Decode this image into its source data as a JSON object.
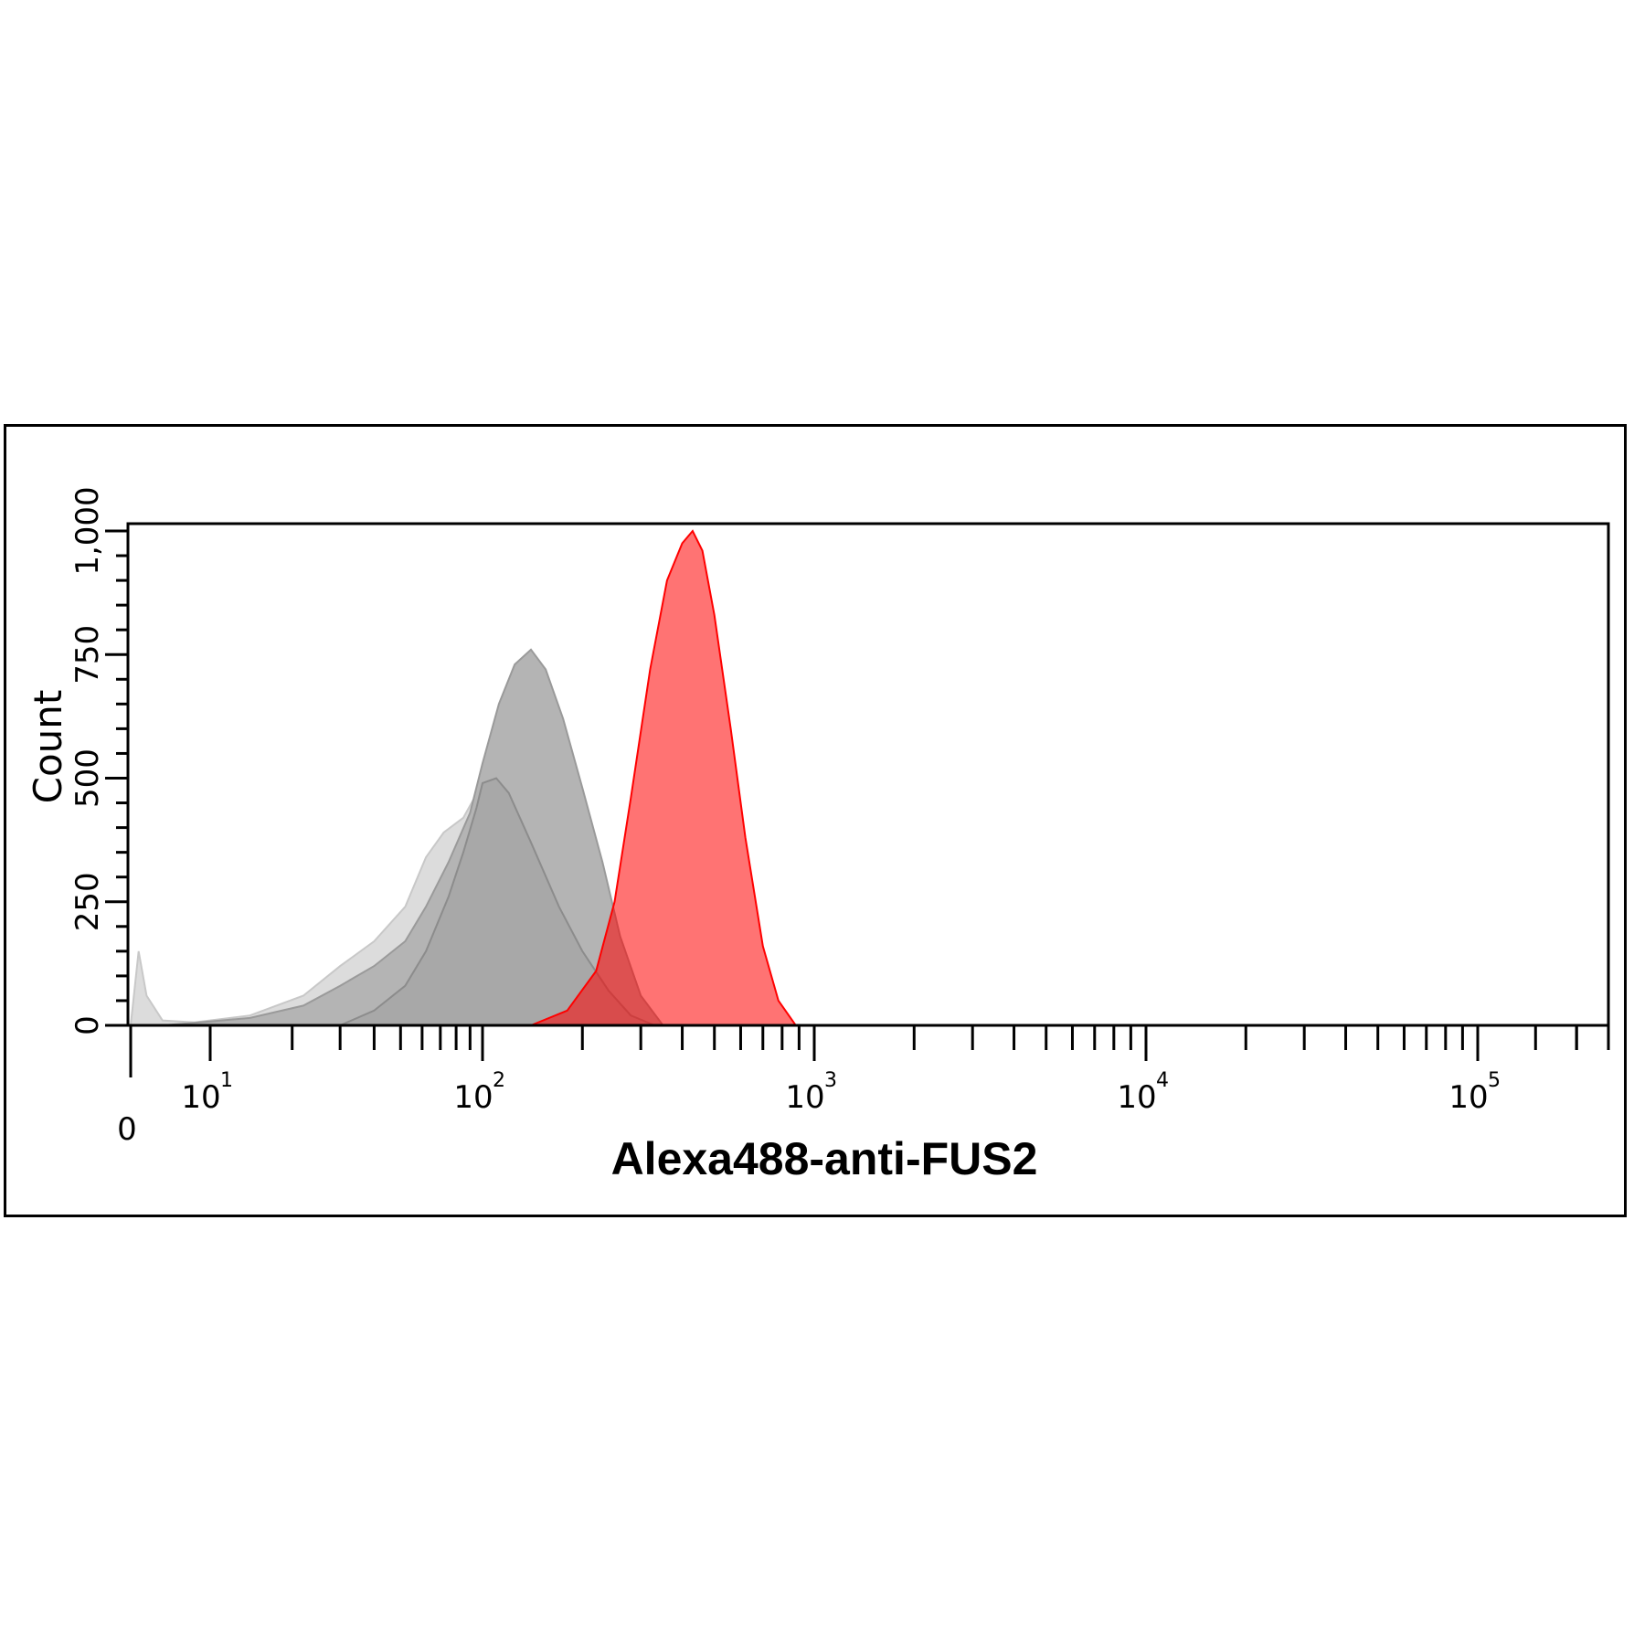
{
  "chart_data": {
    "type": "area",
    "title": "",
    "xlabel": "Alexa488-anti-FUS2",
    "ylabel": "Count",
    "x_scale": "biexponential",
    "xlim": [
      0,
      250000
    ],
    "ylim": [
      0,
      1000
    ],
    "x_ticks": [
      {
        "value": 0,
        "label": "0"
      },
      {
        "value": 10,
        "base": "10",
        "exp": "1"
      },
      {
        "value": 100,
        "base": "10",
        "exp": "2"
      },
      {
        "value": 1000,
        "base": "10",
        "exp": "3"
      },
      {
        "value": 10000,
        "base": "10",
        "exp": "4"
      },
      {
        "value": 100000,
        "base": "10",
        "exp": "5"
      }
    ],
    "y_ticks": [
      {
        "value": 0,
        "label": "0"
      },
      {
        "value": 250,
        "label": "250"
      },
      {
        "value": 500,
        "label": "500"
      },
      {
        "value": 750,
        "label": "750"
      },
      {
        "value": 1000,
        "label": "1,000"
      }
    ],
    "grid": false,
    "legend": "none",
    "series": [
      {
        "color": "#dcdcdc",
        "stroke": "#c8c8c8",
        "points": [
          [
            0,
            0
          ],
          [
            1,
            150
          ],
          [
            2,
            60
          ],
          [
            4,
            10
          ],
          [
            8,
            6
          ],
          [
            14,
            20
          ],
          [
            22,
            60
          ],
          [
            30,
            120
          ],
          [
            40,
            170
          ],
          [
            52,
            240
          ],
          [
            62,
            340
          ],
          [
            72,
            390
          ],
          [
            85,
            420
          ],
          [
            100,
            490
          ],
          [
            115,
            540
          ],
          [
            135,
            470
          ],
          [
            160,
            330
          ],
          [
            200,
            180
          ],
          [
            240,
            80
          ],
          [
            300,
            0
          ]
        ]
      },
      {
        "color": "#b4b4b4",
        "stroke": "#9a9a9a",
        "points": [
          [
            4,
            0
          ],
          [
            8,
            5
          ],
          [
            14,
            15
          ],
          [
            22,
            40
          ],
          [
            30,
            80
          ],
          [
            40,
            120
          ],
          [
            52,
            170
          ],
          [
            62,
            240
          ],
          [
            75,
            330
          ],
          [
            90,
            430
          ],
          [
            100,
            530
          ],
          [
            112,
            650
          ],
          [
            125,
            730
          ],
          [
            140,
            760
          ],
          [
            155,
            720
          ],
          [
            175,
            620
          ],
          [
            200,
            480
          ],
          [
            230,
            330
          ],
          [
            260,
            180
          ],
          [
            300,
            60
          ],
          [
            350,
            0
          ]
        ]
      },
      {
        "color": "#a8a8a8",
        "stroke": "#8c8c8c",
        "points": [
          [
            30,
            0
          ],
          [
            40,
            30
          ],
          [
            52,
            80
          ],
          [
            62,
            150
          ],
          [
            75,
            260
          ],
          [
            85,
            350
          ],
          [
            95,
            440
          ],
          [
            100,
            490
          ],
          [
            110,
            500
          ],
          [
            120,
            470
          ],
          [
            140,
            370
          ],
          [
            170,
            240
          ],
          [
            200,
            150
          ],
          [
            240,
            70
          ],
          [
            280,
            20
          ],
          [
            330,
            0
          ]
        ]
      },
      {
        "color": "#ff0000",
        "opacity": 0.55,
        "stroke": "#ff0000",
        "points": [
          [
            140,
            0
          ],
          [
            180,
            30
          ],
          [
            220,
            110
          ],
          [
            250,
            250
          ],
          [
            280,
            460
          ],
          [
            320,
            720
          ],
          [
            360,
            900
          ],
          [
            400,
            975
          ],
          [
            430,
            1000
          ],
          [
            460,
            960
          ],
          [
            500,
            830
          ],
          [
            560,
            600
          ],
          [
            620,
            380
          ],
          [
            700,
            160
          ],
          [
            780,
            50
          ],
          [
            880,
            0
          ]
        ]
      }
    ]
  }
}
